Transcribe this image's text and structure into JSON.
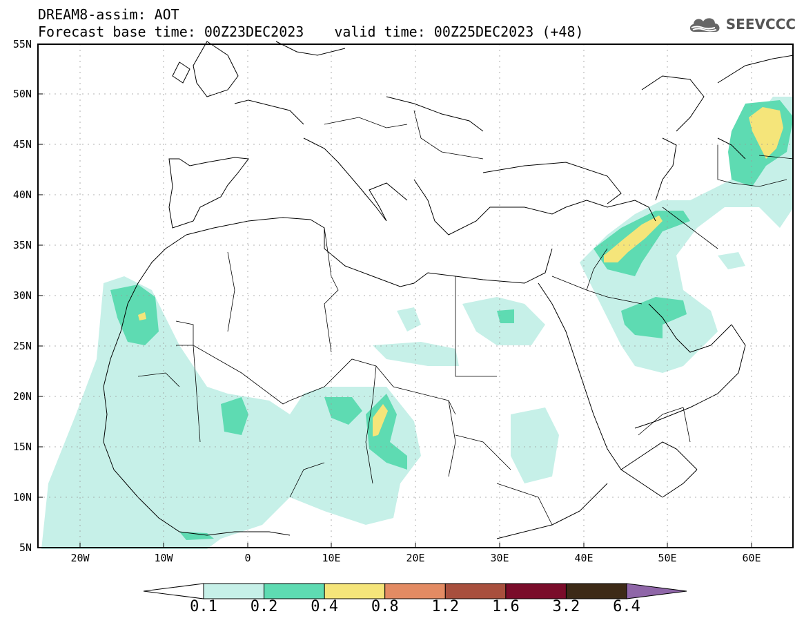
{
  "header": {
    "model_line": "DREAM8-assim: AOT",
    "base_time": "Forecast base time: 00Z23DEC2023",
    "valid_time": "valid time: 00Z25DEC2023 (+48)"
  },
  "logo": {
    "text": "SEEVCCC",
    "icon": "cloud-icon"
  },
  "axes": {
    "lat_labels": [
      "55N",
      "50N",
      "45N",
      "40N",
      "35N",
      "30N",
      "25N",
      "20N",
      "15N",
      "10N",
      "5N"
    ],
    "lon_labels": [
      "20W",
      "10W",
      "0",
      "10E",
      "20E",
      "30E",
      "40E",
      "50E",
      "60E"
    ]
  },
  "colorbar": {
    "colors": [
      "#ffffff",
      "#c6f0e8",
      "#5edbb2",
      "#f5e57a",
      "#e38b63",
      "#a84f3d",
      "#7a0c2a",
      "#3d2a17",
      "#8f66a8"
    ],
    "tick_labels": [
      "0.1",
      "0.2",
      "0.4",
      "0.8",
      "1.2",
      "1.6",
      "3.2",
      "6.4"
    ]
  }
}
